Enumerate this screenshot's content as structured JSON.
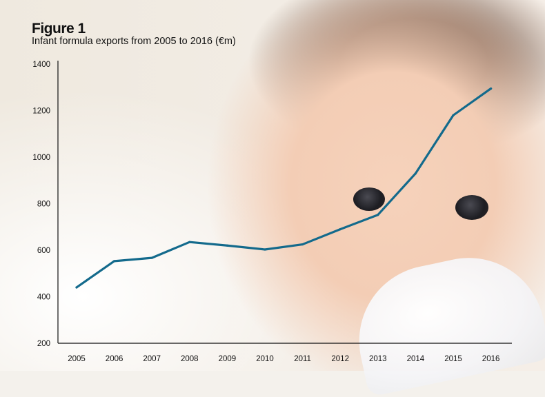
{
  "figure_label": "Figure 1",
  "chart_data": {
    "type": "line",
    "title": "Figure 1",
    "subtitle": "Infant formula exports from 2005 to 2016 (€m)",
    "xlabel": "",
    "ylabel": "",
    "categories": [
      "2005",
      "2006",
      "2007",
      "2008",
      "2009",
      "2010",
      "2011",
      "2012",
      "2013",
      "2014",
      "2015",
      "2016"
    ],
    "series": [
      {
        "values": [
          440,
          553,
          567,
          635,
          620,
          603,
          625,
          690,
          752,
          930,
          1180,
          1295
        ]
      }
    ],
    "ylim": [
      200,
      1400
    ],
    "yticks": [
      200,
      400,
      600,
      800,
      1000,
      1200,
      1400
    ],
    "grid": false,
    "line_color": "#136a8c"
  }
}
